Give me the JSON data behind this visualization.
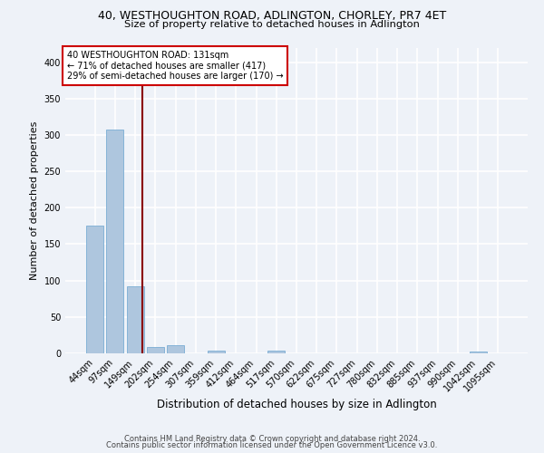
{
  "title": "40, WESTHOUGHTON ROAD, ADLINGTON, CHORLEY, PR7 4ET",
  "subtitle": "Size of property relative to detached houses in Adlington",
  "xlabel": "Distribution of detached houses by size in Adlington",
  "ylabel": "Number of detached properties",
  "footnote1": "Contains HM Land Registry data © Crown copyright and database right 2024.",
  "footnote2": "Contains public sector information licensed under the Open Government Licence v3.0.",
  "annotation_line1": "40 WESTHOUGHTON ROAD: 131sqm",
  "annotation_line2": "← 71% of detached houses are smaller (417)",
  "annotation_line3": "29% of semi-detached houses are larger (170) →",
  "bar_labels": [
    "44sqm",
    "97sqm",
    "149sqm",
    "202sqm",
    "254sqm",
    "307sqm",
    "359sqm",
    "412sqm",
    "464sqm",
    "517sqm",
    "570sqm",
    "622sqm",
    "675sqm",
    "727sqm",
    "780sqm",
    "832sqm",
    "885sqm",
    "937sqm",
    "990sqm",
    "1042sqm",
    "1095sqm"
  ],
  "bar_values": [
    175,
    307,
    92,
    9,
    11,
    0,
    4,
    0,
    0,
    4,
    0,
    0,
    0,
    0,
    0,
    0,
    0,
    0,
    0,
    3,
    0
  ],
  "bar_color": "#aec6de",
  "bar_edgecolor": "#7aadd4",
  "vline_x": 2.35,
  "vline_color": "#8b0000",
  "bg_color": "#eef2f8",
  "grid_color": "#ffffff",
  "annotation_box_color": "#ffffff",
  "annotation_box_edgecolor": "#cc0000",
  "ylim": [
    0,
    420
  ],
  "yticks": [
    0,
    50,
    100,
    150,
    200,
    250,
    300,
    350,
    400
  ]
}
